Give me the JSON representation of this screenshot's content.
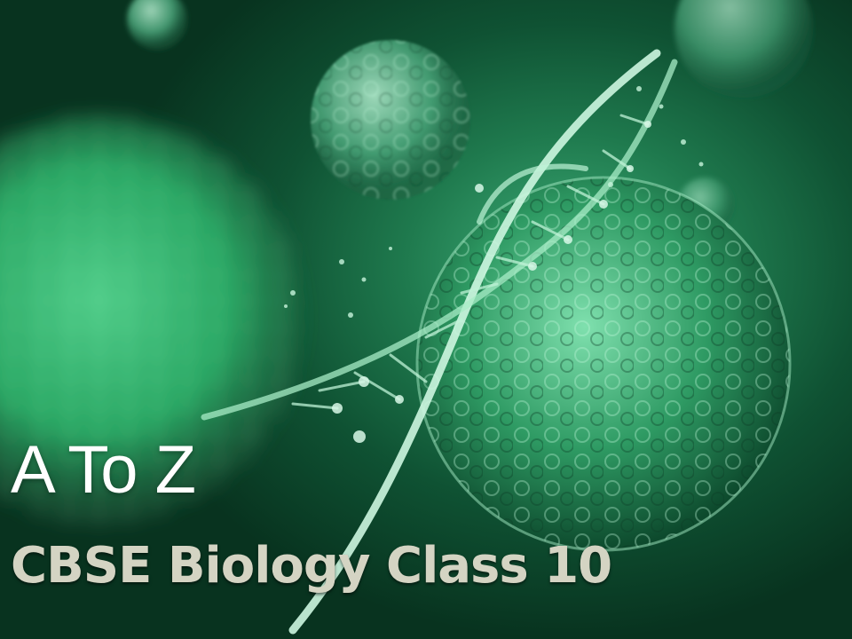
{
  "slide": {
    "heading": "A To Z",
    "subheading": "CBSE Biology Class 10"
  },
  "background": {
    "artwork": [
      "cell-sphere",
      "dna-helix"
    ],
    "colors": {
      "dark": "#08331f",
      "mid": "#1f7a4e",
      "light": "#7fe0ae",
      "subtitle": "#d4d4c3"
    }
  }
}
